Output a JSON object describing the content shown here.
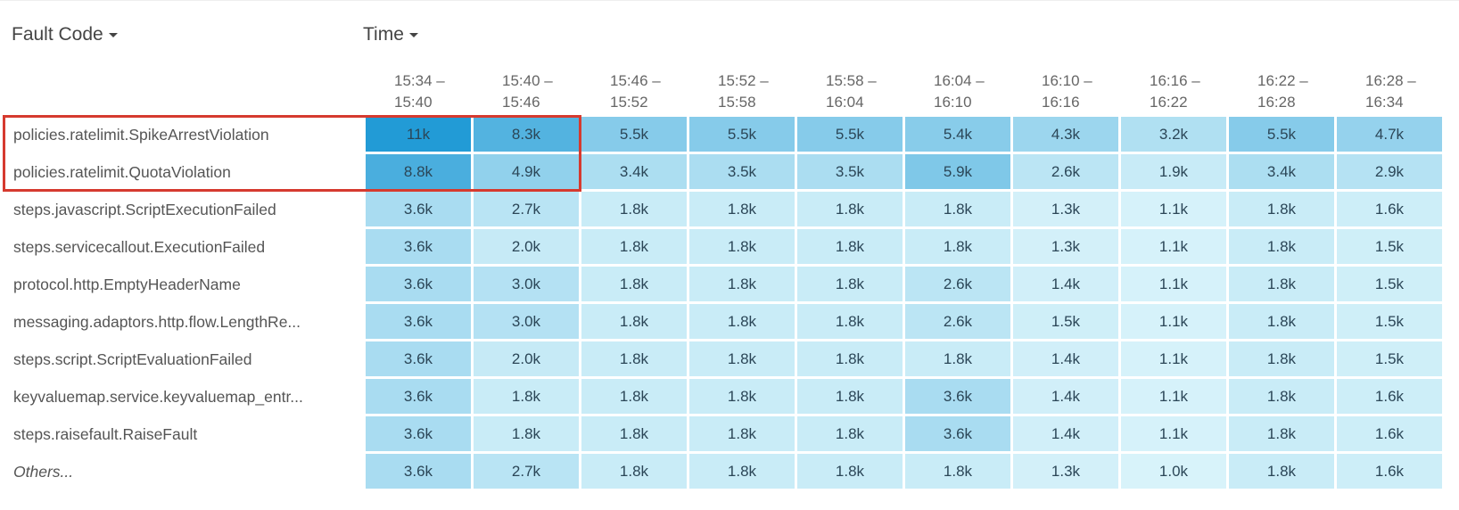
{
  "header": {
    "fault_code": "Fault Code",
    "time": "Time"
  },
  "color_scale": [
    "#d8f3fa",
    "#229bd6"
  ],
  "columns": [
    "15:34 – 15:40",
    "15:40 – 15:46",
    "15:46 – 15:52",
    "15:52 – 15:58",
    "15:58 – 16:04",
    "16:04 – 16:10",
    "16:10 – 16:16",
    "16:16 – 16:22",
    "16:22 – 16:28",
    "16:28 – 16:34"
  ],
  "rows": [
    {
      "label": "policies.ratelimit.SpikeArrestViolation",
      "cells": [
        {
          "value": 11000,
          "label": "11k"
        },
        {
          "value": 8300,
          "label": "8.3k"
        },
        {
          "value": 5500,
          "label": "5.5k"
        },
        {
          "value": 5500,
          "label": "5.5k"
        },
        {
          "value": 5500,
          "label": "5.5k"
        },
        {
          "value": 5400,
          "label": "5.4k"
        },
        {
          "value": 4300,
          "label": "4.3k"
        },
        {
          "value": 3200,
          "label": "3.2k"
        },
        {
          "value": 5500,
          "label": "5.5k"
        },
        {
          "value": 4700,
          "label": "4.7k"
        }
      ]
    },
    {
      "label": "policies.ratelimit.QuotaViolation",
      "cells": [
        {
          "value": 8800,
          "label": "8.8k"
        },
        {
          "value": 4900,
          "label": "4.9k"
        },
        {
          "value": 3400,
          "label": "3.4k"
        },
        {
          "value": 3500,
          "label": "3.5k"
        },
        {
          "value": 3500,
          "label": "3.5k"
        },
        {
          "value": 5900,
          "label": "5.9k"
        },
        {
          "value": 2600,
          "label": "2.6k"
        },
        {
          "value": 1900,
          "label": "1.9k"
        },
        {
          "value": 3400,
          "label": "3.4k"
        },
        {
          "value": 2900,
          "label": "2.9k"
        }
      ]
    },
    {
      "label": "steps.javascript.ScriptExecutionFailed",
      "cells": [
        {
          "value": 3600,
          "label": "3.6k"
        },
        {
          "value": 2700,
          "label": "2.7k"
        },
        {
          "value": 1800,
          "label": "1.8k"
        },
        {
          "value": 1800,
          "label": "1.8k"
        },
        {
          "value": 1800,
          "label": "1.8k"
        },
        {
          "value": 1800,
          "label": "1.8k"
        },
        {
          "value": 1300,
          "label": "1.3k"
        },
        {
          "value": 1100,
          "label": "1.1k"
        },
        {
          "value": 1800,
          "label": "1.8k"
        },
        {
          "value": 1600,
          "label": "1.6k"
        }
      ]
    },
    {
      "label": "steps.servicecallout.ExecutionFailed",
      "cells": [
        {
          "value": 3600,
          "label": "3.6k"
        },
        {
          "value": 2000,
          "label": "2.0k"
        },
        {
          "value": 1800,
          "label": "1.8k"
        },
        {
          "value": 1800,
          "label": "1.8k"
        },
        {
          "value": 1800,
          "label": "1.8k"
        },
        {
          "value": 1800,
          "label": "1.8k"
        },
        {
          "value": 1300,
          "label": "1.3k"
        },
        {
          "value": 1100,
          "label": "1.1k"
        },
        {
          "value": 1800,
          "label": "1.8k"
        },
        {
          "value": 1500,
          "label": "1.5k"
        }
      ]
    },
    {
      "label": "protocol.http.EmptyHeaderName",
      "cells": [
        {
          "value": 3600,
          "label": "3.6k"
        },
        {
          "value": 3000,
          "label": "3.0k"
        },
        {
          "value": 1800,
          "label": "1.8k"
        },
        {
          "value": 1800,
          "label": "1.8k"
        },
        {
          "value": 1800,
          "label": "1.8k"
        },
        {
          "value": 2600,
          "label": "2.6k"
        },
        {
          "value": 1400,
          "label": "1.4k"
        },
        {
          "value": 1100,
          "label": "1.1k"
        },
        {
          "value": 1800,
          "label": "1.8k"
        },
        {
          "value": 1500,
          "label": "1.5k"
        }
      ]
    },
    {
      "label": "messaging.adaptors.http.flow.LengthRe...",
      "cells": [
        {
          "value": 3600,
          "label": "3.6k"
        },
        {
          "value": 3000,
          "label": "3.0k"
        },
        {
          "value": 1800,
          "label": "1.8k"
        },
        {
          "value": 1800,
          "label": "1.8k"
        },
        {
          "value": 1800,
          "label": "1.8k"
        },
        {
          "value": 2600,
          "label": "2.6k"
        },
        {
          "value": 1500,
          "label": "1.5k"
        },
        {
          "value": 1100,
          "label": "1.1k"
        },
        {
          "value": 1800,
          "label": "1.8k"
        },
        {
          "value": 1500,
          "label": "1.5k"
        }
      ]
    },
    {
      "label": "steps.script.ScriptEvaluationFailed",
      "cells": [
        {
          "value": 3600,
          "label": "3.6k"
        },
        {
          "value": 2000,
          "label": "2.0k"
        },
        {
          "value": 1800,
          "label": "1.8k"
        },
        {
          "value": 1800,
          "label": "1.8k"
        },
        {
          "value": 1800,
          "label": "1.8k"
        },
        {
          "value": 1800,
          "label": "1.8k"
        },
        {
          "value": 1400,
          "label": "1.4k"
        },
        {
          "value": 1100,
          "label": "1.1k"
        },
        {
          "value": 1800,
          "label": "1.8k"
        },
        {
          "value": 1500,
          "label": "1.5k"
        }
      ]
    },
    {
      "label": "keyvaluemap.service.keyvaluemap_entr...",
      "cells": [
        {
          "value": 3600,
          "label": "3.6k"
        },
        {
          "value": 1800,
          "label": "1.8k"
        },
        {
          "value": 1800,
          "label": "1.8k"
        },
        {
          "value": 1800,
          "label": "1.8k"
        },
        {
          "value": 1800,
          "label": "1.8k"
        },
        {
          "value": 3600,
          "label": "3.6k"
        },
        {
          "value": 1400,
          "label": "1.4k"
        },
        {
          "value": 1100,
          "label": "1.1k"
        },
        {
          "value": 1800,
          "label": "1.8k"
        },
        {
          "value": 1600,
          "label": "1.6k"
        }
      ]
    },
    {
      "label": "steps.raisefault.RaiseFault",
      "cells": [
        {
          "value": 3600,
          "label": "3.6k"
        },
        {
          "value": 1800,
          "label": "1.8k"
        },
        {
          "value": 1800,
          "label": "1.8k"
        },
        {
          "value": 1800,
          "label": "1.8k"
        },
        {
          "value": 1800,
          "label": "1.8k"
        },
        {
          "value": 3600,
          "label": "3.6k"
        },
        {
          "value": 1400,
          "label": "1.4k"
        },
        {
          "value": 1100,
          "label": "1.1k"
        },
        {
          "value": 1800,
          "label": "1.8k"
        },
        {
          "value": 1600,
          "label": "1.6k"
        }
      ]
    },
    {
      "label": "Others...",
      "cells": [
        {
          "value": 3600,
          "label": "3.6k"
        },
        {
          "value": 2700,
          "label": "2.7k"
        },
        {
          "value": 1800,
          "label": "1.8k"
        },
        {
          "value": 1800,
          "label": "1.8k"
        },
        {
          "value": 1800,
          "label": "1.8k"
        },
        {
          "value": 1800,
          "label": "1.8k"
        },
        {
          "value": 1300,
          "label": "1.3k"
        },
        {
          "value": 1000,
          "label": "1.0k"
        },
        {
          "value": 1800,
          "label": "1.8k"
        },
        {
          "value": 1600,
          "label": "1.6k"
        }
      ]
    }
  ]
}
